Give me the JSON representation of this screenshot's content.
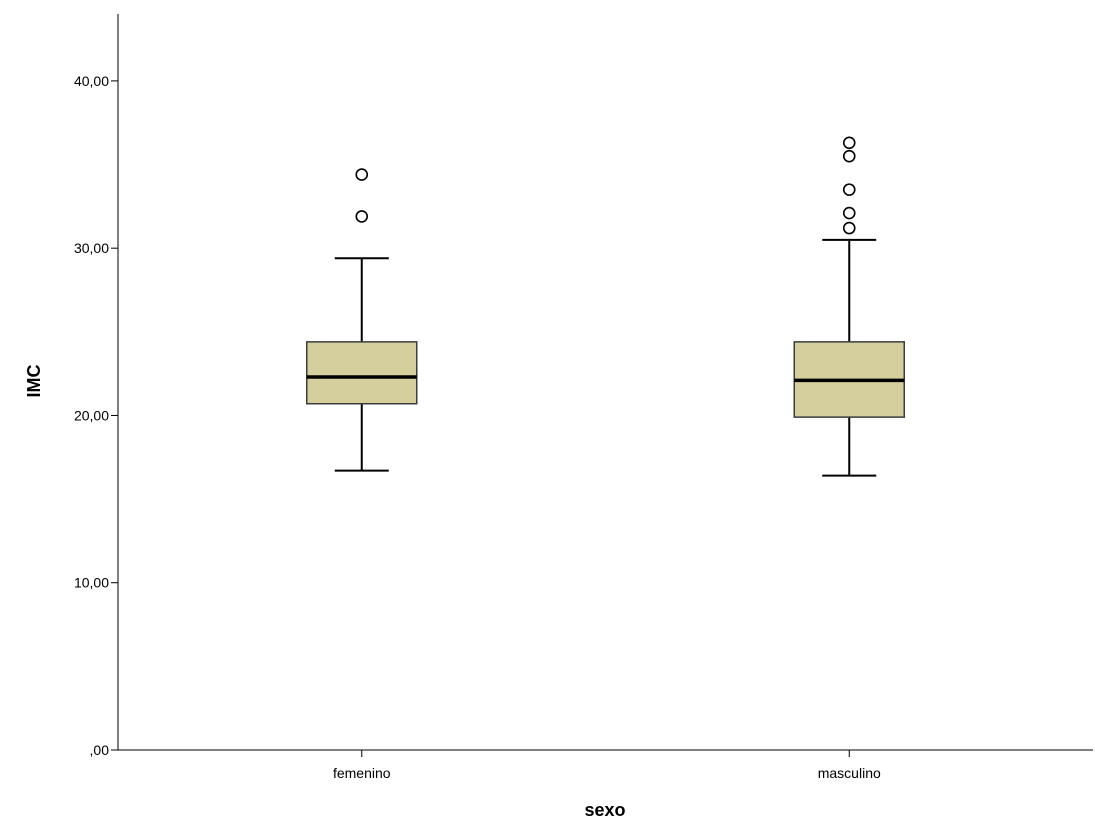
{
  "chart_data": {
    "type": "box",
    "xlabel": "sexo",
    "ylabel": "IMC",
    "ylim": [
      0,
      44
    ],
    "yticks": [
      0,
      10,
      20,
      30,
      40
    ],
    "ytick_labels": [
      ",00",
      "10,00",
      "20,00",
      "30,00",
      "40,00"
    ],
    "grid": false,
    "categories": [
      "femenino",
      "masculino"
    ],
    "boxes": [
      {
        "category": "femenino",
        "whisker_low": 16.7,
        "q1": 20.7,
        "median": 22.3,
        "q3": 24.4,
        "whisker_high": 29.4,
        "outliers": [
          34.4,
          31.9
        ]
      },
      {
        "category": "masculino",
        "whisker_low": 16.4,
        "q1": 19.9,
        "median": 22.1,
        "q3": 24.4,
        "whisker_high": 30.5,
        "outliers": [
          36.3,
          35.5,
          33.5,
          32.1,
          31.2
        ]
      }
    ],
    "colors": {
      "box_fill": "#d4cf9c",
      "box_stroke": "#3c3c3c",
      "line": "#000000"
    }
  }
}
